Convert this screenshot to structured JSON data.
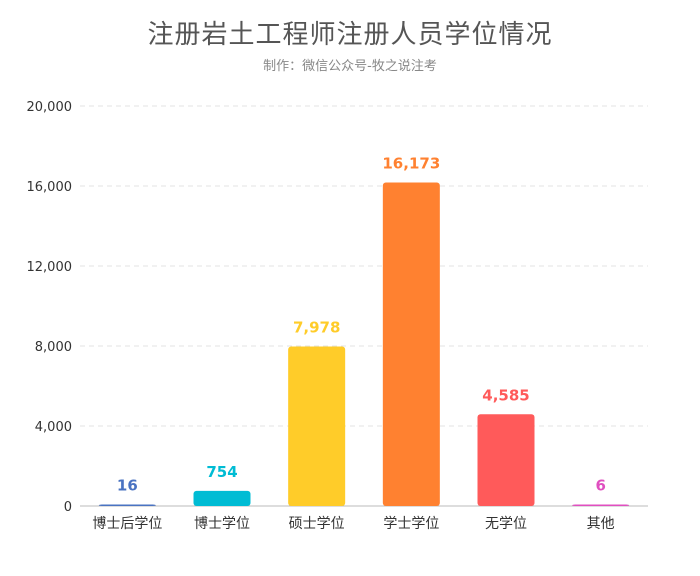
{
  "chart_data": {
    "type": "bar",
    "title": "注册岩土工程师注册人员学位情况",
    "subtitle": "制作：微信公众号-牧之说注考",
    "categories": [
      "博士后学位",
      "博士学位",
      "硕士学位",
      "学士学位",
      "无学位",
      "其他"
    ],
    "values": [
      16,
      754,
      7978,
      16173,
      4585,
      6
    ],
    "value_labels": [
      "16",
      "754",
      "7,978",
      "16,173",
      "4,585",
      "6"
    ],
    "colors": [
      "#4a73c2",
      "#00bcd4",
      "#ffcc29",
      "#ff8130",
      "#ff5a5a",
      "#e04fc0"
    ],
    "ylim": [
      0,
      20000
    ],
    "yticks": [
      0,
      4000,
      8000,
      12000,
      16000,
      20000
    ],
    "ytick_labels": [
      "0",
      "4,000",
      "8,000",
      "12,000",
      "16,000",
      "20,000"
    ],
    "grid": true
  }
}
